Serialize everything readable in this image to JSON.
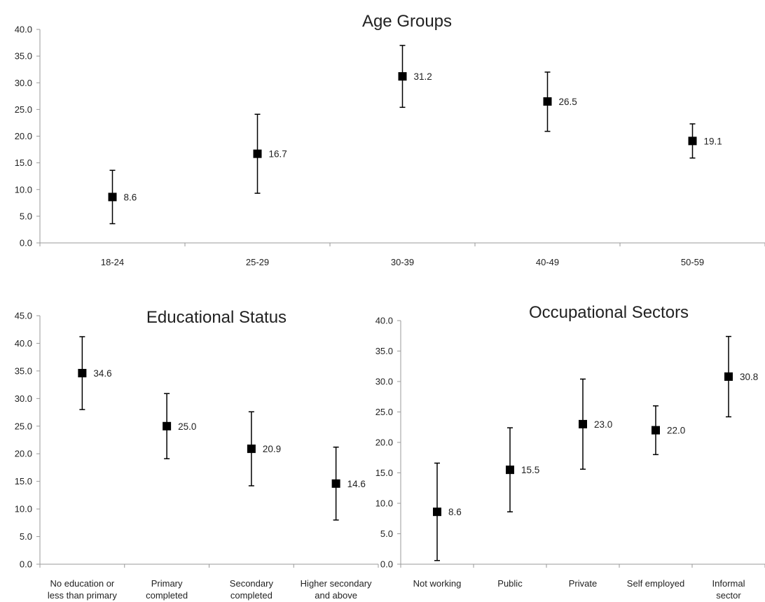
{
  "chart_data": [
    {
      "type": "scatter",
      "title": "Age Groups",
      "categories": [
        "18-24",
        "25-29",
        "30-39",
        "40-49",
        "50-59"
      ],
      "values": [
        8.6,
        16.7,
        31.2,
        26.5,
        19.1
      ],
      "value_labels": [
        "8.6",
        "16.7",
        "31.2",
        "26.5",
        "19.1"
      ],
      "error_low": [
        3.6,
        9.3,
        25.4,
        20.9,
        15.9
      ],
      "error_high": [
        13.6,
        24.1,
        37.0,
        32.0,
        22.3
      ],
      "ylim": [
        0,
        40
      ],
      "yticks": [
        "0.0",
        "5.0",
        "10.0",
        "15.0",
        "20.0",
        "25.0",
        "30.0",
        "35.0",
        "40.0"
      ],
      "marker": "square",
      "error_bars": true,
      "grid": false
    },
    {
      "type": "scatter",
      "title": "Educational Status",
      "categories": [
        [
          "No education or",
          "less than primary"
        ],
        [
          "Primary",
          "completed"
        ],
        [
          "Secondary",
          "completed"
        ],
        [
          "Higher secondary",
          "and above"
        ]
      ],
      "values": [
        34.6,
        25.0,
        20.9,
        14.6
      ],
      "value_labels": [
        "34.6",
        "25.0",
        "20.9",
        "14.6"
      ],
      "error_low": [
        28.0,
        19.1,
        14.2,
        8.0
      ],
      "error_high": [
        41.2,
        30.9,
        27.6,
        21.2
      ],
      "ylim": [
        0,
        45
      ],
      "yticks": [
        "0.0",
        "5.0",
        "10.0",
        "15.0",
        "20.0",
        "25.0",
        "30.0",
        "35.0",
        "40.0",
        "45.0"
      ],
      "marker": "square",
      "error_bars": true,
      "grid": false
    },
    {
      "type": "scatter",
      "title": "Occupational Sectors",
      "categories": [
        [
          "Not working"
        ],
        [
          "Public"
        ],
        [
          "Private"
        ],
        [
          "Self employed"
        ],
        [
          "Informal",
          "sector"
        ]
      ],
      "values": [
        8.6,
        15.5,
        23.0,
        22.0,
        30.8
      ],
      "value_labels": [
        "8.6",
        "15.5",
        "23.0",
        "22.0",
        "30.8"
      ],
      "error_low": [
        0.6,
        8.6,
        15.6,
        18.0,
        24.2
      ],
      "error_high": [
        16.6,
        22.4,
        30.4,
        26.0,
        37.4
      ],
      "ylim": [
        0,
        40
      ],
      "yticks": [
        "0.0",
        "5.0",
        "10.0",
        "15.0",
        "20.0",
        "25.0",
        "30.0",
        "35.0",
        "40.0"
      ],
      "marker": "square",
      "error_bars": true,
      "grid": false
    }
  ]
}
